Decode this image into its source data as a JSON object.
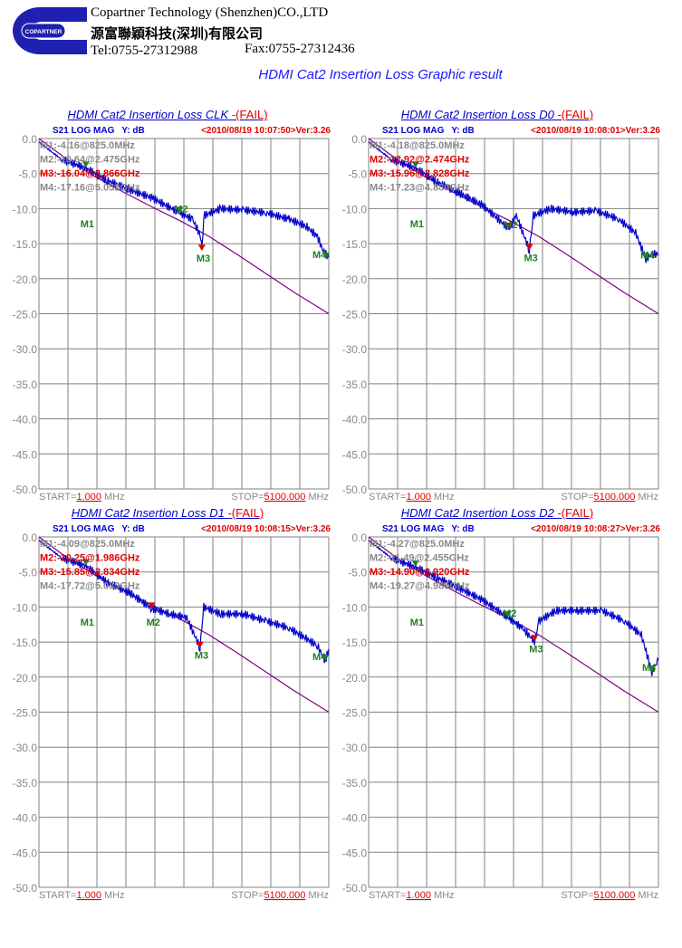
{
  "header": {
    "company_en": "Copartner Technology (Shenzhen)CO.,LTD",
    "company_cn": "源富聯穎科技(深圳)有限公司",
    "tel": "Tel:0755-27312988",
    "fax": "Fax:0755-27312436",
    "logo_text": "COPARTNER"
  },
  "main_title": "HDMI Cat2 Insertion Loss Graphic result",
  "colors": {
    "trace": "#0000cc",
    "limit": "#800080",
    "fail": "#e00000",
    "grid": "#808080"
  },
  "chart_data": [
    {
      "type": "line",
      "title": "HDMI Cat2 Insertion Loss CLK ",
      "status": "-(FAIL)",
      "param": "S21  LOG MAG",
      "yunit": "Y: dB",
      "stamp": "<2010/08/19 10:07:50>Ver:3.26",
      "markers": [
        {
          "id": "M1",
          "text": "M1:-4.16@825.0MHz",
          "fail": false,
          "f": 0.825,
          "db": -4.16
        },
        {
          "id": "M2",
          "text": "M2:-10.64@2.475GHz",
          "fail": false,
          "f": 2.475,
          "db": -10.64
        },
        {
          "id": "M3",
          "text": "M3:-16.04@2.866GHz",
          "fail": true,
          "f": 2.866,
          "db": -16.04
        },
        {
          "id": "M4",
          "text": "M4:-17.16@5.052GHz",
          "fail": false,
          "f": 5.052,
          "db": -17.16
        }
      ],
      "trace": [
        [
          0,
          -0.5
        ],
        [
          0.4,
          -3
        ],
        [
          0.825,
          -4.2
        ],
        [
          1.2,
          -6
        ],
        [
          1.6,
          -7.3
        ],
        [
          2.0,
          -8.5
        ],
        [
          2.475,
          -10.6
        ],
        [
          2.7,
          -11.5
        ],
        [
          2.85,
          -14
        ],
        [
          2.866,
          -16
        ],
        [
          2.9,
          -11
        ],
        [
          3.2,
          -10
        ],
        [
          3.6,
          -10.2
        ],
        [
          4.0,
          -10.6
        ],
        [
          4.4,
          -11.5
        ],
        [
          4.7,
          -12.5
        ],
        [
          4.9,
          -14
        ],
        [
          5.0,
          -16
        ],
        [
          5.1,
          -17
        ]
      ]
    },
    {
      "type": "line",
      "title": "HDMI Cat2 Insertion Loss D0 ",
      "status": "-(FAIL)",
      "param": "S21  LOG MAG",
      "yunit": "Y: dB",
      "stamp": "<2010/08/19 10:08:01>Ver:3.26",
      "markers": [
        {
          "id": "M1",
          "text": "M1:-4.18@825.0MHz",
          "fail": false,
          "f": 0.825,
          "db": -4.18
        },
        {
          "id": "M2",
          "text": "M2:-12.92@2.474GHz",
          "fail": true,
          "f": 2.474,
          "db": -12.92
        },
        {
          "id": "M3",
          "text": "M3:-15.96@2.828GHz",
          "fail": true,
          "f": 2.828,
          "db": -15.96
        },
        {
          "id": "M4",
          "text": "M4:-17.23@4.880GHz",
          "fail": false,
          "f": 4.88,
          "db": -17.23
        }
      ],
      "trace": [
        [
          0,
          -0.5
        ],
        [
          0.4,
          -3
        ],
        [
          0.825,
          -4.2
        ],
        [
          1.2,
          -6.2
        ],
        [
          1.6,
          -7.8
        ],
        [
          2.0,
          -9.5
        ],
        [
          2.474,
          -12.9
        ],
        [
          2.6,
          -11
        ],
        [
          2.828,
          -15.9
        ],
        [
          2.9,
          -11
        ],
        [
          3.2,
          -10
        ],
        [
          3.6,
          -10.5
        ],
        [
          4.0,
          -10.3
        ],
        [
          4.4,
          -11.5
        ],
        [
          4.7,
          -13.5
        ],
        [
          4.88,
          -17.2
        ],
        [
          5.0,
          -16.5
        ],
        [
          5.1,
          -16.5
        ]
      ]
    },
    {
      "type": "line",
      "title": "HDMI Cat2 Insertion Loss D1 ",
      "status": "-(FAIL)",
      "param": "S21  LOG MAG",
      "yunit": "Y: dB",
      "stamp": "<2010/08/19 10:08:15>Ver:3.26",
      "markers": [
        {
          "id": "M1",
          "text": "M1:-4.09@825.0MHz",
          "fail": false,
          "f": 0.825,
          "db": -4.09
        },
        {
          "id": "M2",
          "text": "M2:-10.25@1.986GHz",
          "fail": true,
          "f": 1.986,
          "db": -10.25
        },
        {
          "id": "M3",
          "text": "M3:-15.85@2.834GHz",
          "fail": true,
          "f": 2.834,
          "db": -15.85
        },
        {
          "id": "M4",
          "text": "M4:-17.72@5.039GHz",
          "fail": false,
          "f": 5.039,
          "db": -17.72
        }
      ],
      "trace": [
        [
          0,
          -0.5
        ],
        [
          0.4,
          -3
        ],
        [
          0.825,
          -4.1
        ],
        [
          1.2,
          -6.5
        ],
        [
          1.6,
          -8
        ],
        [
          1.986,
          -10.2
        ],
        [
          2.3,
          -11
        ],
        [
          2.6,
          -11.5
        ],
        [
          2.834,
          -15.8
        ],
        [
          2.9,
          -10
        ],
        [
          3.2,
          -11
        ],
        [
          3.6,
          -11
        ],
        [
          4.0,
          -12
        ],
        [
          4.4,
          -13
        ],
        [
          4.7,
          -14.5
        ],
        [
          4.9,
          -15.5
        ],
        [
          5.039,
          -17.7
        ],
        [
          5.1,
          -16
        ]
      ]
    },
    {
      "type": "line",
      "title": "HDMI Cat2 Insertion Loss D2 ",
      "status": "-(FAIL)",
      "param": "S21  LOG MAG",
      "yunit": "Y: dB",
      "stamp": "<2010/08/19 10:08:27>Ver:3.26",
      "markers": [
        {
          "id": "M1",
          "text": "M1:-4.27@825.0MHz",
          "fail": false,
          "f": 0.825,
          "db": -4.27
        },
        {
          "id": "M2",
          "text": "M2:-11.49@2.455GHz",
          "fail": false,
          "f": 2.455,
          "db": -11.49
        },
        {
          "id": "M3",
          "text": "M3:-14.90@2.920GHz",
          "fail": true,
          "f": 2.92,
          "db": -14.9
        },
        {
          "id": "M4",
          "text": "M4:-19.27@4.985GHz",
          "fail": false,
          "f": 4.985,
          "db": -19.27
        }
      ],
      "trace": [
        [
          0,
          -0.5
        ],
        [
          0.4,
          -3
        ],
        [
          0.825,
          -4.3
        ],
        [
          1.2,
          -5.8
        ],
        [
          1.6,
          -7.3
        ],
        [
          2.0,
          -9
        ],
        [
          2.455,
          -11.5
        ],
        [
          2.7,
          -13
        ],
        [
          2.92,
          -14.9
        ],
        [
          3.0,
          -12
        ],
        [
          3.3,
          -10.5
        ],
        [
          3.7,
          -10.5
        ],
        [
          4.1,
          -10.5
        ],
        [
          4.5,
          -12
        ],
        [
          4.8,
          -14
        ],
        [
          4.985,
          -19.3
        ],
        [
          5.1,
          -17.5
        ]
      ]
    }
  ],
  "limit": [
    [
      0,
      0
    ],
    [
      0.5,
      -3
    ],
    [
      1,
      -5.5
    ],
    [
      1.5,
      -7.7
    ],
    [
      2,
      -9.8
    ],
    [
      2.5,
      -11.8
    ],
    [
      3,
      -14
    ],
    [
      3.5,
      -16.6
    ],
    [
      4,
      -19.3
    ],
    [
      4.5,
      -22
    ],
    [
      5.1,
      -25
    ]
  ],
  "axis": {
    "yticks": [
      "0.0",
      "-5.0",
      "-10.0",
      "-15.0",
      "-20.0",
      "-25.0",
      "-30.0",
      "-35.0",
      "-40.0",
      "-45.0",
      "-50.0"
    ],
    "start_label": "START=",
    "start_value": "1.000",
    "stop_label": "STOP=",
    "stop_value": "5100.000",
    "unit": "MHz",
    "ymin": -50,
    "ymax": 0,
    "xmax_ghz": 5.1
  }
}
